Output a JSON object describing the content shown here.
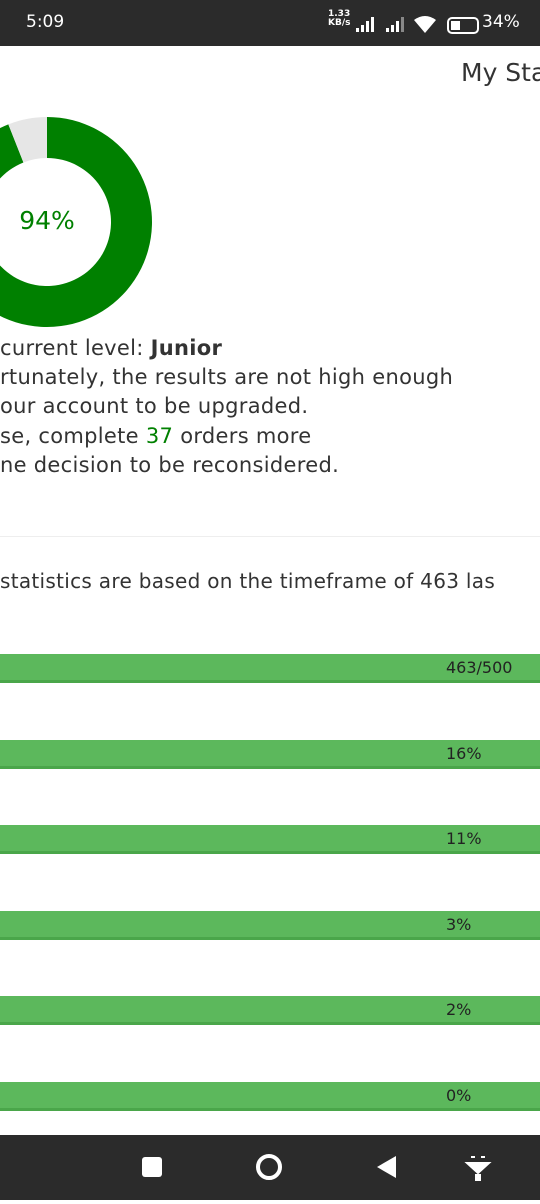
{
  "status_bar": {
    "time": "5:09",
    "speed": "1.33",
    "speed_unit": "KB/s",
    "battery": "34%"
  },
  "header": {
    "title": "My Sta"
  },
  "donut": {
    "value": 94,
    "label": "94%",
    "color": "#008000",
    "rest_color": "#e6e6e6"
  },
  "level": {
    "prefix": "current level: ",
    "name": "Junior"
  },
  "message": {
    "line1": "rtunately, the results are not high enough",
    "line2": "our account to be upgraded.",
    "line3_before": "se, complete ",
    "line3_number": "37",
    "line3_after": " orders more",
    "line4": "ne decision to be reconsidered."
  },
  "statistics_note": "statistics are based on the timeframe of 463 las",
  "bars": [
    "463/500",
    "16%",
    "11%",
    "3%",
    "2%",
    "0%"
  ]
}
